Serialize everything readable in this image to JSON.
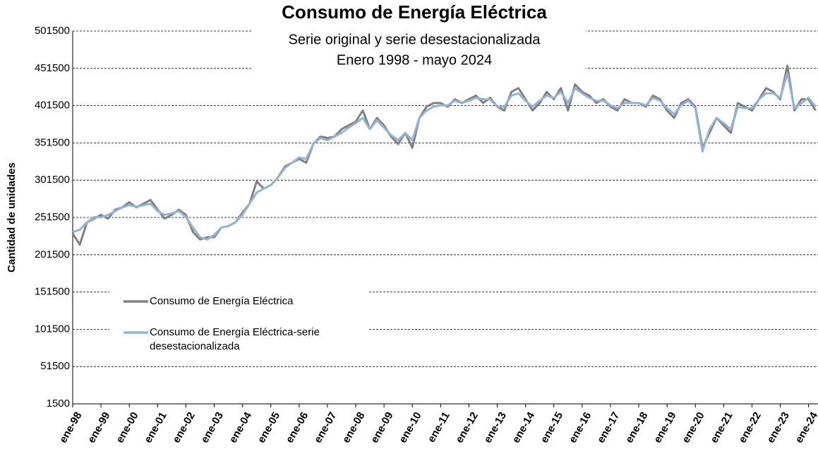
{
  "chart_data": {
    "type": "line",
    "title": "Consumo de Energía Eléctrica",
    "subtitle": [
      "Serie original y serie desestacionalizada",
      "Enero 1998 - mayo 2024"
    ],
    "y_label": "Cantidad de unidades",
    "ylim": [
      1500,
      501500
    ],
    "yticks": [
      1500,
      51500,
      101500,
      151500,
      201500,
      251500,
      301500,
      351500,
      401500,
      451500,
      501500
    ],
    "grid": true,
    "categories": [
      "ene-98",
      null,
      null,
      null,
      "ene-99",
      null,
      null,
      null,
      "ene-00",
      null,
      null,
      null,
      "ene-01",
      null,
      null,
      null,
      "ene-02",
      null,
      null,
      null,
      "ene-03",
      null,
      null,
      null,
      "ene-04",
      null,
      null,
      null,
      "ene-05",
      null,
      null,
      null,
      "ene-06",
      null,
      null,
      null,
      "ene-07",
      null,
      null,
      null,
      "ene-08",
      null,
      null,
      null,
      "ene-09",
      null,
      null,
      null,
      "ene-10",
      null,
      null,
      null,
      "ene-11",
      null,
      null,
      null,
      "ene-12",
      null,
      null,
      null,
      "ene-13",
      null,
      null,
      null,
      "ene-14",
      null,
      null,
      null,
      "ene-15",
      null,
      null,
      null,
      "ene-16",
      null,
      null,
      null,
      "ene-17",
      null,
      null,
      null,
      "ene-18",
      null,
      null,
      null,
      "ene-19",
      null,
      null,
      null,
      "ene-20",
      null,
      null,
      null,
      "ene-21",
      null,
      null,
      null,
      "ene-22",
      null,
      null,
      null,
      "ene-23",
      null,
      null,
      null,
      "ene-24",
      null
    ],
    "series": [
      {
        "name": "Consumo de Energía Eléctrica",
        "color": "#808080",
        "values": [
          230000,
          215000,
          245000,
          250000,
          255000,
          250000,
          262000,
          265000,
          272000,
          265000,
          270000,
          275000,
          262000,
          250000,
          255000,
          262000,
          255000,
          232000,
          222000,
          225000,
          225000,
          238000,
          240000,
          245000,
          258000,
          270000,
          300000,
          290000,
          295000,
          305000,
          320000,
          325000,
          330000,
          325000,
          350000,
          360000,
          358000,
          360000,
          370000,
          375000,
          380000,
          395000,
          370000,
          385000,
          375000,
          360000,
          350000,
          365000,
          345000,
          385000,
          400000,
          405000,
          405000,
          400000,
          410000,
          405000,
          410000,
          415000,
          405000,
          412000,
          400000,
          395000,
          420000,
          425000,
          410000,
          395000,
          405000,
          420000,
          410000,
          425000,
          395000,
          430000,
          420000,
          415000,
          405000,
          410000,
          400000,
          395000,
          410000,
          405000,
          405000,
          400000,
          415000,
          410000,
          395000,
          385000,
          405000,
          410000,
          400000,
          345000,
          365000,
          385000,
          375000,
          365000,
          405000,
          400000,
          395000,
          410000,
          425000,
          420000,
          410000,
          455000,
          395000,
          410000,
          410000,
          395000
        ]
      },
      {
        "name": "Consumo de Energía Eléctrica-serie desestacionalizada",
        "color": "#95b3d7",
        "values": [
          232000,
          235000,
          245000,
          252000,
          252000,
          255000,
          260000,
          265000,
          268000,
          266000,
          268000,
          270000,
          260000,
          255000,
          257000,
          260000,
          252000,
          238000,
          225000,
          222000,
          228000,
          238000,
          240000,
          245000,
          255000,
          270000,
          285000,
          290000,
          295000,
          305000,
          318000,
          325000,
          332000,
          330000,
          350000,
          358000,
          355000,
          360000,
          365000,
          372000,
          378000,
          385000,
          370000,
          382000,
          372000,
          362000,
          355000,
          365000,
          355000,
          385000,
          395000,
          400000,
          402000,
          402000,
          408000,
          405000,
          408000,
          412000,
          410000,
          410000,
          400000,
          400000,
          415000,
          418000,
          408000,
          400000,
          408000,
          415000,
          412000,
          420000,
          405000,
          425000,
          418000,
          412000,
          408000,
          408000,
          402000,
          398000,
          405000,
          405000,
          405000,
          402000,
          412000,
          408000,
          398000,
          390000,
          402000,
          408000,
          398000,
          340000,
          370000,
          385000,
          378000,
          370000,
          400000,
          398000,
          398000,
          410000,
          418000,
          418000,
          412000,
          445000,
          398000,
          405000,
          412000,
          400000
        ]
      }
    ]
  }
}
